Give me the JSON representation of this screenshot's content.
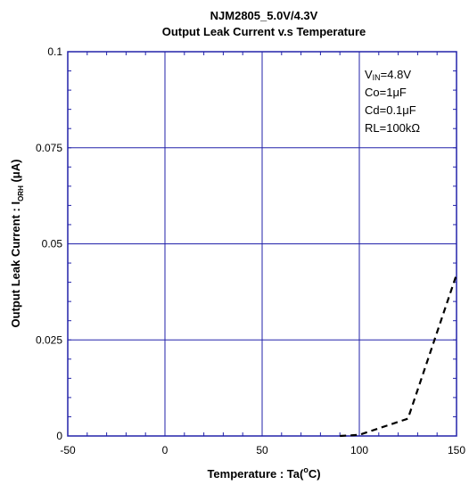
{
  "chart_data": {
    "type": "line",
    "title": "NJM2805_5.0V/4.3V",
    "subtitle": "Output Leak Current v.s Temperature",
    "xlabel": {
      "main": "Temperature : Ta(",
      "sup": "o",
      "tail": "C)"
    },
    "ylabel": {
      "main": "Output Leak Current : I",
      "sub": "ORH",
      "tail": " (μA)"
    },
    "xlim": [
      -50,
      150
    ],
    "ylim": [
      0,
      0.1
    ],
    "x_ticks": [
      -50,
      0,
      50,
      100,
      150
    ],
    "y_ticks": [
      0,
      0.025,
      0.05,
      0.075,
      0.1
    ],
    "x_tick_labels": [
      "-50",
      "0",
      "50",
      "100",
      "150"
    ],
    "y_tick_labels": [
      "0",
      "0.025",
      "0.05",
      "0.075",
      "0.1"
    ],
    "grid": true,
    "series": [
      {
        "style": "dashed",
        "color": "#000000",
        "x": [
          90,
          100,
          125,
          150
        ],
        "y": [
          0,
          0.0003,
          0.0045,
          0.042
        ]
      }
    ],
    "annotations": [
      {
        "main": "V",
        "sub": "IN",
        "tail": "=4.8V"
      },
      {
        "main": "Co=1μF"
      },
      {
        "main": "Cd=0.1μF"
      },
      {
        "main": "RL=100kΩ"
      }
    ],
    "colors": {
      "grid": "#2222aa",
      "frame": "#2222aa",
      "series": "#000000"
    }
  }
}
